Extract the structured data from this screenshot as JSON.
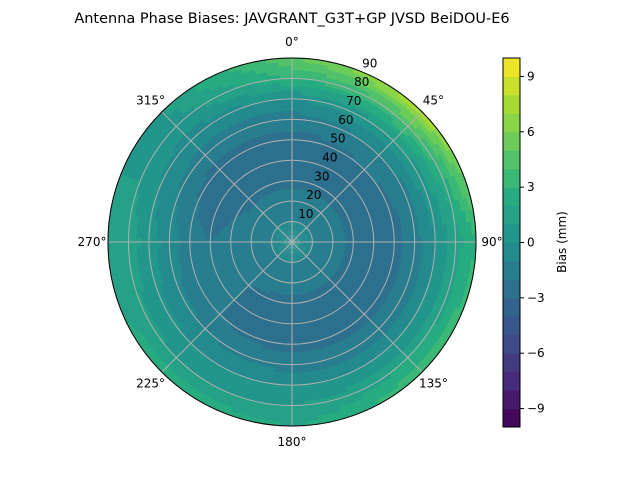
{
  "chart_data": {
    "type": "heatmap",
    "subtype": "polar-filled-contour",
    "title": "Antenna Phase Biases: JAVGRANT_G3T+GP JVSD BeiDOU-E6",
    "theta_zero": "north",
    "theta_direction": "clockwise",
    "theta_tick_labels": [
      "0°",
      "45°",
      "90°",
      "135°",
      "180°",
      "225°",
      "270°",
      "315°"
    ],
    "radial_ticks": [
      10,
      20,
      30,
      40,
      50,
      60,
      70,
      80,
      90
    ],
    "radial_tick_labels": [
      "10",
      "20",
      "30",
      "40",
      "50",
      "60",
      "70",
      "80",
      "90"
    ],
    "rlim": [
      0,
      90
    ],
    "grid": true,
    "colormap": "viridis",
    "colorbar": {
      "label": "Bias (mm)",
      "range": [
        -10,
        10
      ],
      "level_step": 1,
      "ticks": [
        -9,
        -6,
        -3,
        0,
        3,
        6,
        9
      ],
      "tick_labels": [
        "−9",
        "−6",
        "−3",
        "0",
        "3",
        "6",
        "9"
      ]
    },
    "azimuths": [
      0,
      45,
      90,
      135,
      180,
      225,
      270,
      315
    ],
    "radii": [
      0,
      10,
      20,
      30,
      40,
      50,
      60,
      70,
      80,
      90
    ],
    "values": [
      [
        -1,
        -1,
        -1.5,
        -2.5,
        -2.5,
        -2.5,
        -1.5,
        0,
        3,
        5
      ],
      [
        -1,
        -1,
        -1.5,
        -2.5,
        -2.5,
        -2,
        -1,
        1,
        4,
        8
      ],
      [
        -1,
        -1,
        -1.5,
        -2.5,
        -2.5,
        -2.5,
        -1.5,
        0,
        1.5,
        3
      ],
      [
        -1,
        -1,
        -1.5,
        -2.5,
        -2.5,
        -2.5,
        -1.5,
        0,
        2,
        4
      ],
      [
        -1,
        -1,
        -1.5,
        -2.5,
        -2.5,
        -2.5,
        -1.5,
        0,
        1,
        2
      ],
      [
        -1,
        -1,
        -1.5,
        -2,
        -2,
        -2,
        -1,
        0,
        1,
        3
      ],
      [
        -1,
        -1,
        -1,
        -1.5,
        -2,
        -1.5,
        -0.5,
        0.5,
        1.5,
        1
      ],
      [
        -1,
        -1,
        -1.5,
        -2.5,
        -3,
        -2.5,
        -1.5,
        -0.5,
        0.5,
        1
      ]
    ]
  }
}
